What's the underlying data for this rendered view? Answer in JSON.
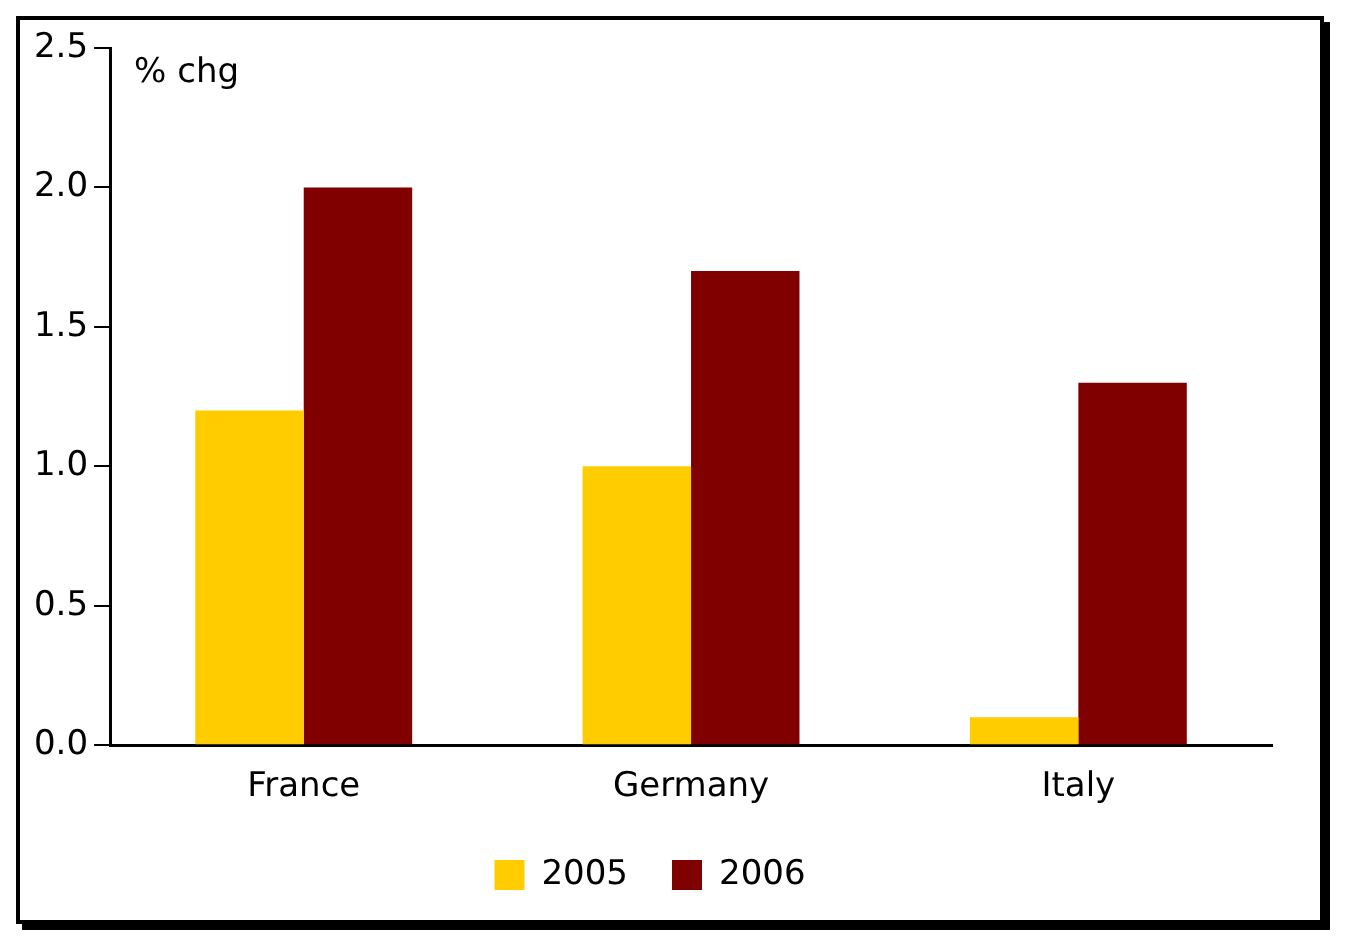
{
  "chart_data": {
    "type": "bar",
    "ylabel": "% chg",
    "categories": [
      "France",
      "Germany",
      "Italy"
    ],
    "series": [
      {
        "name": "2005",
        "color": "#ffcc00",
        "values": [
          1.2,
          1.0,
          0.1
        ]
      },
      {
        "name": "2006",
        "color": "#800000",
        "values": [
          2.0,
          1.7,
          1.3
        ]
      }
    ],
    "ylim": [
      0,
      2.5
    ],
    "yticks": [
      {
        "value": 0,
        "label": "0.0"
      },
      {
        "value": 0.5,
        "label": "0.5"
      },
      {
        "value": 1,
        "label": "1.0"
      },
      {
        "value": 1.5,
        "label": "1.5"
      },
      {
        "value": 2,
        "label": "2.0"
      },
      {
        "value": 2.5,
        "label": "2.5"
      }
    ],
    "grid": false,
    "legend": "bottom"
  }
}
